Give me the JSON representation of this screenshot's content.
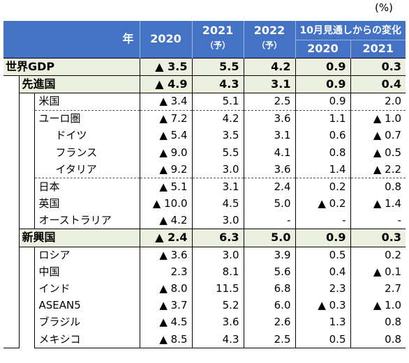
{
  "unit": "(%)",
  "header": {
    "corner": "年",
    "years": [
      "2020",
      "2021",
      "2022"
    ],
    "forecast": "（予）",
    "change_title": "10月見通しからの変化",
    "change_years": [
      "2020",
      "2021"
    ]
  },
  "world": {
    "label": "世界GDP",
    "v": [
      "▲ 3.5",
      "5.5",
      "4.2",
      "0.9",
      "0.3"
    ]
  },
  "advanced": {
    "label": "先進国",
    "v": [
      "▲ 4.9",
      "4.3",
      "3.1",
      "0.9",
      "0.4"
    ],
    "rows": [
      {
        "label": "米国",
        "v": [
          "▲ 3.4",
          "5.1",
          "2.5",
          "0.9",
          "2.0"
        ]
      },
      {
        "label": "ユーロ圏",
        "v": [
          "▲ 7.2",
          "4.2",
          "3.6",
          "1.1",
          "▲ 1.0"
        ]
      },
      {
        "label": "ドイツ",
        "v": [
          "▲ 5.4",
          "3.5",
          "3.1",
          "0.6",
          "▲ 0.7"
        ]
      },
      {
        "label": "フランス",
        "v": [
          "▲ 9.0",
          "5.5",
          "4.1",
          "0.8",
          "▲ 0.5"
        ]
      },
      {
        "label": "イタリア",
        "v": [
          "▲ 9.2",
          "3.0",
          "3.6",
          "1.4",
          "▲ 2.2"
        ]
      },
      {
        "label": "日本",
        "v": [
          "▲ 5.1",
          "3.1",
          "2.4",
          "0.2",
          "0.8"
        ]
      },
      {
        "label": "英国",
        "v": [
          "▲ 10.0",
          "4.5",
          "5.0",
          "▲ 0.2",
          "▲ 1.4"
        ]
      },
      {
        "label": "オーストラリア",
        "v": [
          "▲ 4.2",
          "3.0",
          "-",
          "-",
          "-"
        ]
      }
    ]
  },
  "emerging": {
    "label": "新興国",
    "v": [
      "▲ 2.4",
      "6.3",
      "5.0",
      "0.9",
      "0.3"
    ],
    "rows": [
      {
        "label": "ロシア",
        "v": [
          "▲ 3.6",
          "3.0",
          "3.9",
          "0.5",
          "0.2"
        ]
      },
      {
        "label": "中国",
        "v": [
          "2.3",
          "8.1",
          "5.6",
          "0.4",
          "▲ 0.1"
        ]
      },
      {
        "label": "インド",
        "v": [
          "▲ 8.0",
          "11.5",
          "6.8",
          "2.3",
          "2.7"
        ]
      },
      {
        "label": "ASEAN5",
        "v": [
          "▲ 3.7",
          "5.2",
          "6.0",
          "▲ 0.3",
          "▲ 1.0"
        ]
      },
      {
        "label": "ブラジル",
        "v": [
          "▲ 4.5",
          "3.6",
          "2.6",
          "1.3",
          "0.8"
        ]
      },
      {
        "label": "メキシコ",
        "v": [
          "▲ 8.5",
          "4.3",
          "2.5",
          "0.5",
          "0.8"
        ]
      }
    ]
  }
}
